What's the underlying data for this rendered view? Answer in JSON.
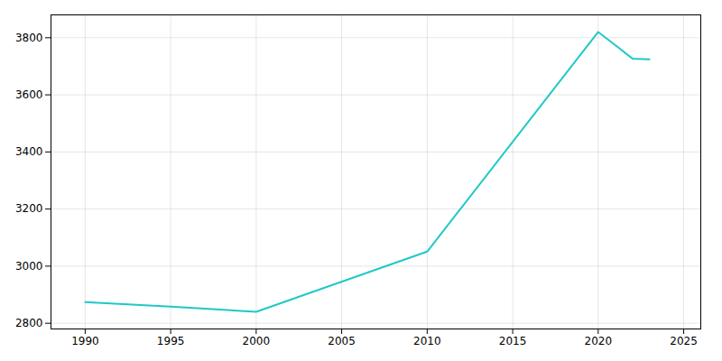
{
  "chart_data": {
    "type": "line",
    "x": [
      1990,
      1995,
      2000,
      2010,
      2020,
      2021,
      2022,
      2023
    ],
    "values": [
      2874,
      2858,
      2840,
      3051,
      3820,
      3774,
      3727,
      3724
    ],
    "color": "#20c8c8",
    "xlim": [
      1988,
      2026
    ],
    "ylim": [
      2780,
      3880
    ],
    "xticks": [
      1990,
      1995,
      2000,
      2005,
      2010,
      2015,
      2020,
      2025
    ],
    "yticks": [
      2800,
      3000,
      3200,
      3400,
      3600,
      3800
    ],
    "grid": true
  }
}
